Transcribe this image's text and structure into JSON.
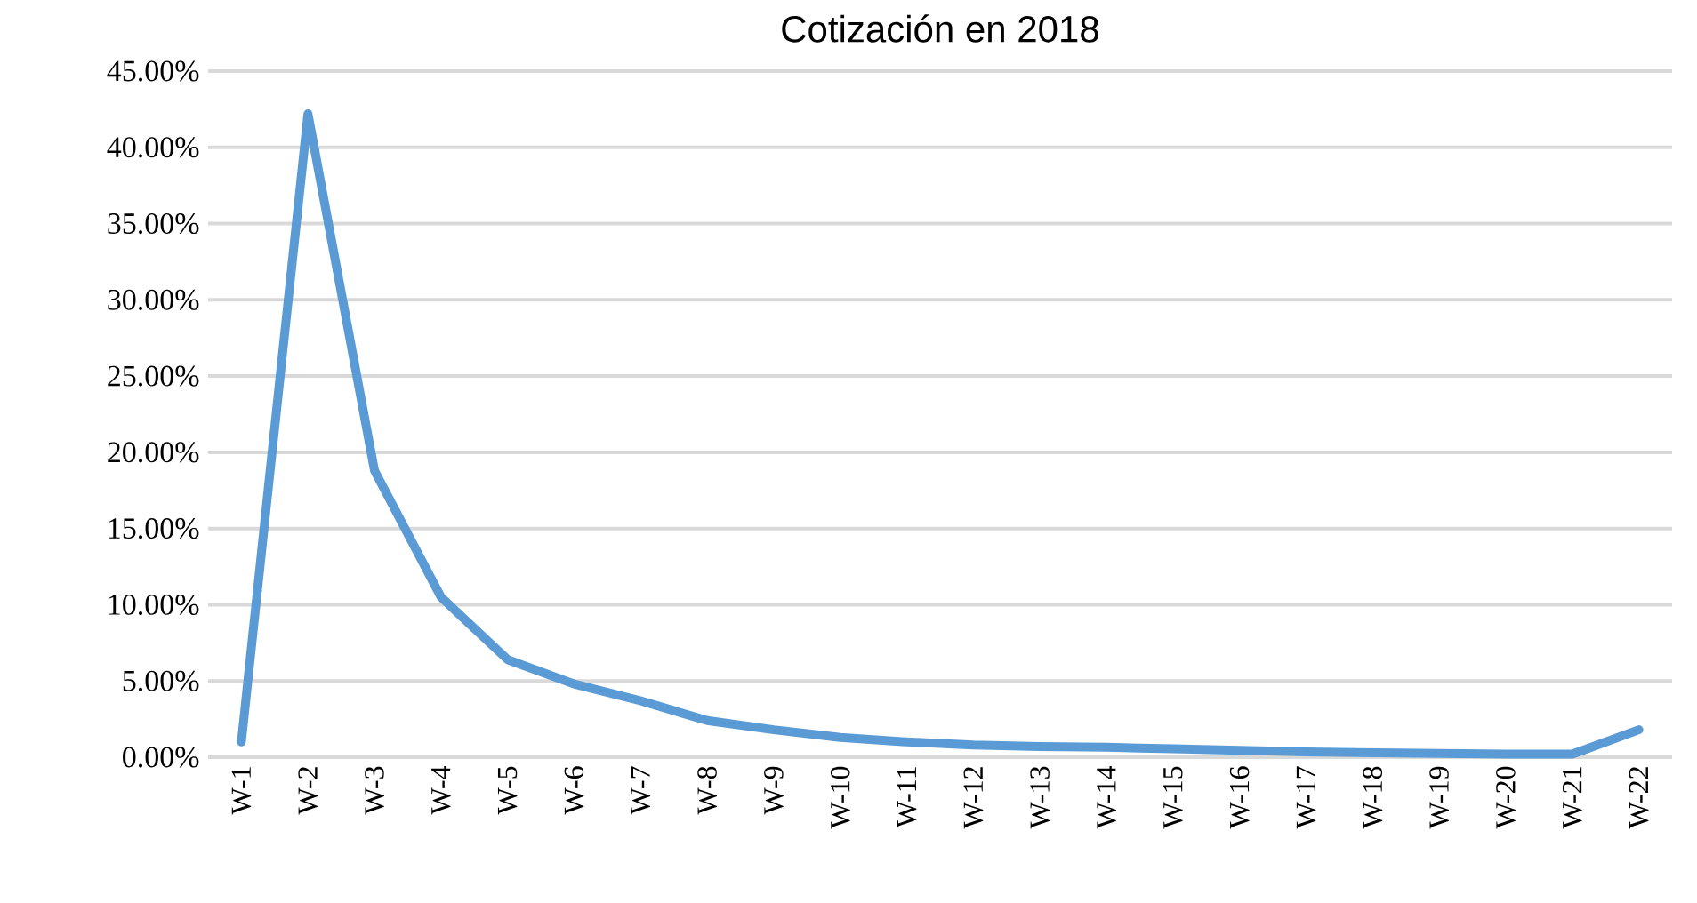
{
  "chart_data": {
    "type": "line",
    "title": "Cotización en 2018",
    "categories": [
      "W-1",
      "W-2",
      "W-3",
      "W-4",
      "W-5",
      "W-6",
      "W-7",
      "W-8",
      "W-9",
      "W-10",
      "W-11",
      "W-12",
      "W-13",
      "W-14",
      "W-15",
      "W-16",
      "W-17",
      "W-18",
      "W-19",
      "W-20",
      "W-21",
      "W-22"
    ],
    "series": [
      {
        "color": "#5b9bd5",
        "values": [
          1.0,
          42.2,
          18.8,
          10.5,
          6.4,
          4.8,
          3.7,
          2.4,
          1.8,
          1.3,
          1.0,
          0.8,
          0.7,
          0.65,
          0.55,
          0.45,
          0.35,
          0.3,
          0.25,
          0.2,
          0.2,
          1.8
        ]
      }
    ],
    "ylim": [
      0,
      45
    ],
    "yticks": [
      {
        "value": 0,
        "label": "0.00%"
      },
      {
        "value": 5,
        "label": "5.00%"
      },
      {
        "value": 10,
        "label": "10.00%"
      },
      {
        "value": 15,
        "label": "15.00%"
      },
      {
        "value": 20,
        "label": "20.00%"
      },
      {
        "value": 25,
        "label": "25.00%"
      },
      {
        "value": 30,
        "label": "30.00%"
      },
      {
        "value": 35,
        "label": "35.00%"
      },
      {
        "value": 40,
        "label": "40.00%"
      },
      {
        "value": 45,
        "label": "45.00%"
      }
    ],
    "grid": "y",
    "marker": "none",
    "line_style": "solid",
    "legend": false
  }
}
